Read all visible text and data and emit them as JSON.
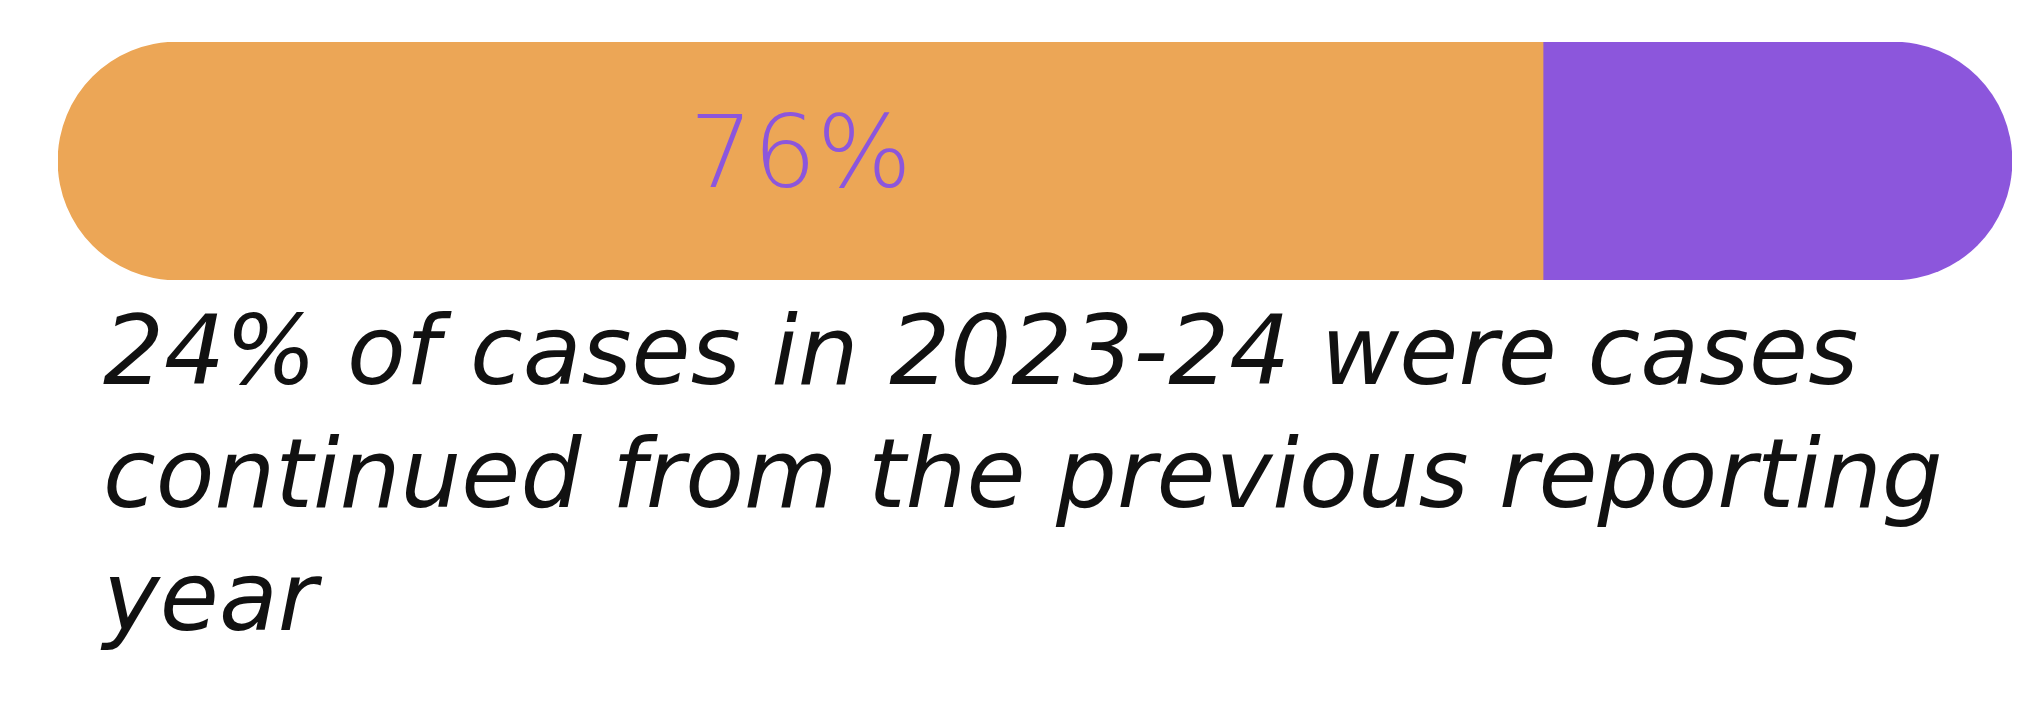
{
  "chart_data": {
    "type": "bar",
    "orientation": "horizontal",
    "stacked": true,
    "categories": [
      null
    ],
    "series": [
      {
        "color": "#eca656",
        "values": [
          76
        ],
        "value_labels": [
          "76%"
        ]
      },
      {
        "color": "#8c56dc",
        "values": [
          24
        ]
      }
    ],
    "legend": false,
    "annotations": [
      "24% of cases in 2023-24 were cases continued from the previous reporting year"
    ]
  }
}
